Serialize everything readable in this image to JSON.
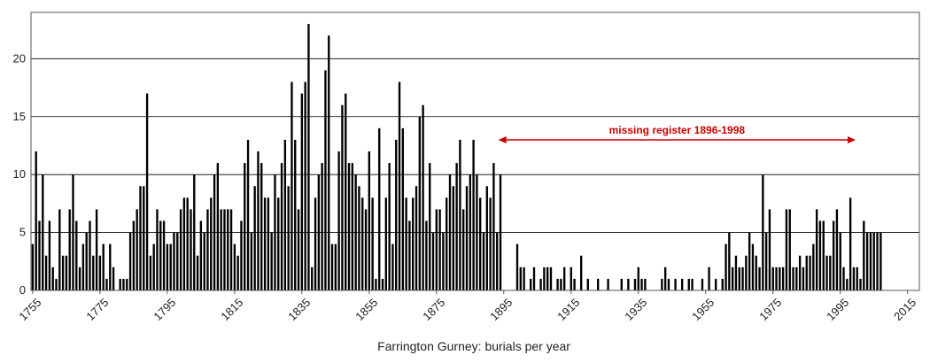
{
  "chart_data": {
    "type": "bar",
    "title": "",
    "xlabel": "Farrington Gurney: burials per year",
    "ylabel": "",
    "x_start": 1755,
    "x_end": 2018,
    "ylim": [
      0,
      24
    ],
    "yticks": [
      0,
      5,
      10,
      15,
      20
    ],
    "xticks": [
      1755,
      1775,
      1795,
      1815,
      1835,
      1855,
      1875,
      1895,
      1915,
      1935,
      1955,
      1975,
      1995,
      2015
    ],
    "grid": true,
    "bar_color": "#000000",
    "annotation": {
      "text": "missing register 1896-1998",
      "from": 1896,
      "to": 1998,
      "color": "#cc0000"
    },
    "values": [
      4,
      12,
      6,
      10,
      3,
      6,
      2,
      1,
      7,
      3,
      3,
      7,
      10,
      6,
      2,
      4,
      5,
      6,
      3,
      7,
      3,
      4,
      1,
      4,
      2,
      0,
      1,
      1,
      1,
      5,
      6,
      7,
      9,
      9,
      17,
      3,
      4,
      7,
      6,
      6,
      4,
      4,
      5,
      5,
      7,
      8,
      8,
      7,
      10,
      3,
      6,
      5,
      7,
      8,
      10,
      11,
      7,
      7,
      7,
      7,
      4,
      3,
      6,
      11,
      13,
      5,
      9,
      12,
      11,
      8,
      8,
      5,
      10,
      8,
      11,
      13,
      9,
      18,
      13,
      7,
      17,
      18,
      23,
      2,
      8,
      10,
      11,
      19,
      22,
      4,
      4,
      12,
      16,
      17,
      11,
      11,
      10,
      9,
      8,
      7,
      12,
      8,
      1,
      14,
      1,
      8,
      11,
      4,
      13,
      18,
      14,
      8,
      6,
      8,
      9,
      15,
      16,
      6,
      11,
      5,
      7,
      7,
      5,
      8,
      10,
      9,
      11,
      13,
      7,
      9,
      10,
      13,
      10,
      8,
      5,
      9,
      8,
      11,
      5,
      10,
      0,
      0,
      0,
      0,
      0,
      0,
      0,
      0,
      0,
      0,
      0,
      0,
      0,
      0,
      0,
      0,
      0,
      0,
      0,
      0,
      0,
      0,
      0,
      0,
      0,
      0,
      0,
      0,
      0,
      0,
      0,
      0,
      0,
      0,
      0,
      0,
      0,
      0,
      0,
      0,
      0,
      0,
      0,
      0,
      0,
      0,
      0,
      0,
      0,
      0,
      0,
      0,
      0,
      0,
      0,
      0,
      0,
      0,
      0,
      0,
      0,
      0,
      0,
      0,
      0,
      0,
      0,
      0,
      0,
      0,
      0,
      0,
      0,
      0,
      0,
      0,
      0,
      0,
      0,
      0,
      0,
      0,
      0,
      0,
      0,
      0,
      0,
      0,
      0,
      0,
      0,
      0,
      0,
      9,
      8,
      7,
      3,
      5,
      3,
      3,
      1,
      2,
      5,
      8,
      2,
      2,
      1,
      6,
      5,
      5,
      5,
      5,
      5
    ],
    "values_tail_note": "",
    "late_values": {
      "1899": 4,
      "1900": 2,
      "1901": 2,
      "1903": 1,
      "1904": 2,
      "1906": 1,
      "1907": 2,
      "1908": 2,
      "1909": 2,
      "1911": 1,
      "1912": 1,
      "1913": 2,
      "1915": 2,
      "1916": 1,
      "1918": 3,
      "1920": 1,
      "1923": 1,
      "1926": 1,
      "1930": 1,
      "1932": 1,
      "1934": 1,
      "1935": 2,
      "1936": 1,
      "1937": 1,
      "1942": 1,
      "1943": 2,
      "1944": 1,
      "1946": 1,
      "1948": 1,
      "1950": 1,
      "1951": 1,
      "1954": 1,
      "1956": 2,
      "1958": 1,
      "1960": 1,
      "1961": 4,
      "1962": 5,
      "1963": 2,
      "1964": 3,
      "1965": 2,
      "1966": 2,
      "1967": 3,
      "1968": 5,
      "1969": 4,
      "1970": 3,
      "1971": 2,
      "1972": 10,
      "1973": 5,
      "1974": 7,
      "1975": 2,
      "1976": 2,
      "1977": 2,
      "1978": 2,
      "1979": 7,
      "1980": 7,
      "1981": 2,
      "1982": 2,
      "1983": 3,
      "1984": 2,
      "1985": 3,
      "1986": 3,
      "1987": 4,
      "1988": 7,
      "1989": 6,
      "1990": 6,
      "1991": 3,
      "1992": 3,
      "1993": 6,
      "1994": 7,
      "1995": 5,
      "1996": 2,
      "1997": 1
    }
  }
}
